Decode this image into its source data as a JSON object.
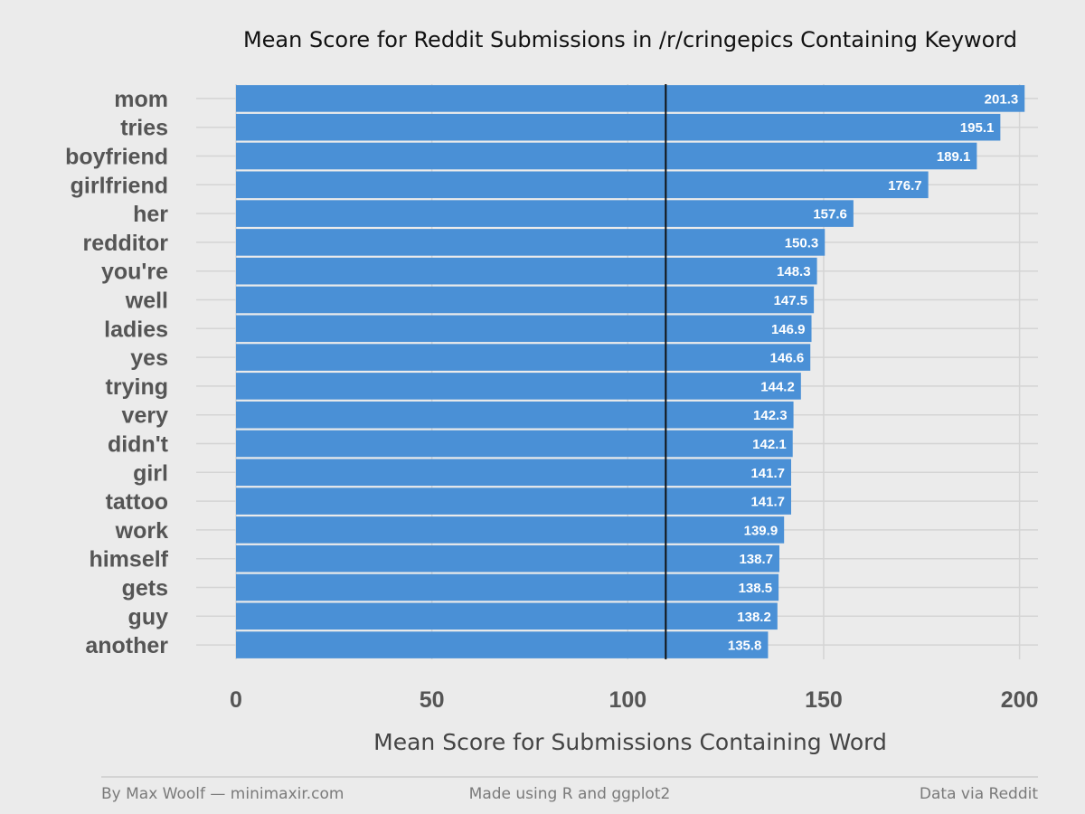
{
  "chart_data": {
    "type": "bar",
    "orientation": "horizontal",
    "title": "Mean Score for Reddit Submissions in /r/cringepics Containing Keyword",
    "xlabel": "Mean Score for Submissions Containing Word",
    "ylabel": "",
    "xlim": [
      0,
      205
    ],
    "x_ticks": [
      0,
      50,
      100,
      150,
      200
    ],
    "x_tick_labels": [
      "0",
      "50",
      "100",
      "150",
      "200"
    ],
    "reference_line": 109.7,
    "grid": true,
    "categories": [
      "mom",
      "tries",
      "boyfriend",
      "girlfriend",
      "her",
      "redditor",
      "you're",
      "well",
      "ladies",
      "yes",
      "trying",
      "very",
      "didn't",
      "girl",
      "tattoo",
      "work",
      "himself",
      "gets",
      "guy",
      "another"
    ],
    "values": [
      201.3,
      195.1,
      189.1,
      176.7,
      157.6,
      150.3,
      148.3,
      147.5,
      146.9,
      146.6,
      144.2,
      142.3,
      142.1,
      141.7,
      141.7,
      139.9,
      138.7,
      138.5,
      138.2,
      135.8
    ],
    "value_labels": [
      "201.3",
      "195.1",
      "189.1",
      "176.7",
      "157.6",
      "150.3",
      "148.3",
      "147.5",
      "146.9",
      "146.6",
      "144.2",
      "142.3",
      "142.1",
      "141.7",
      "141.7",
      "139.9",
      "138.7",
      "138.5",
      "138.2",
      "135.8"
    ],
    "colors": {
      "bar": "#4a90d6",
      "background": "#ebebeb",
      "grid": "#d4d4d4",
      "reference_line": "#111111"
    }
  },
  "footer": {
    "left": "By Max Woolf — minimaxir.com",
    "center": "Made using R and ggplot2",
    "right": "Data via Reddit"
  }
}
